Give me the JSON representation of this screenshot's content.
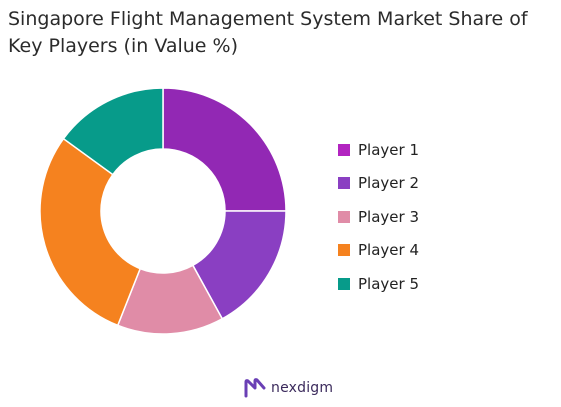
{
  "title": "Singapore Flight Management System Market Share of Key Players (in Value %)",
  "brand": {
    "name": "nexdigm",
    "icon": "nexdigm-logo-icon",
    "color": "#6a3fb5"
  },
  "chart_data": {
    "type": "pie",
    "donut": true,
    "title": "Singapore Flight Management System Market Share of Key Players (in Value %)",
    "legend": "right",
    "categories": [
      "Player 1",
      "Player 2",
      "Player 3",
      "Player 4",
      "Player 5"
    ],
    "values": [
      25,
      17,
      14,
      29,
      15
    ],
    "colors": [
      "#9228b4",
      "#8a3fc2",
      "#e08ca7",
      "#f5821f",
      "#079b8a"
    ],
    "legend_colors": [
      "#b224c0",
      "#8a3fc2",
      "#e08ca7",
      "#f5821f",
      "#079b8a"
    ]
  }
}
